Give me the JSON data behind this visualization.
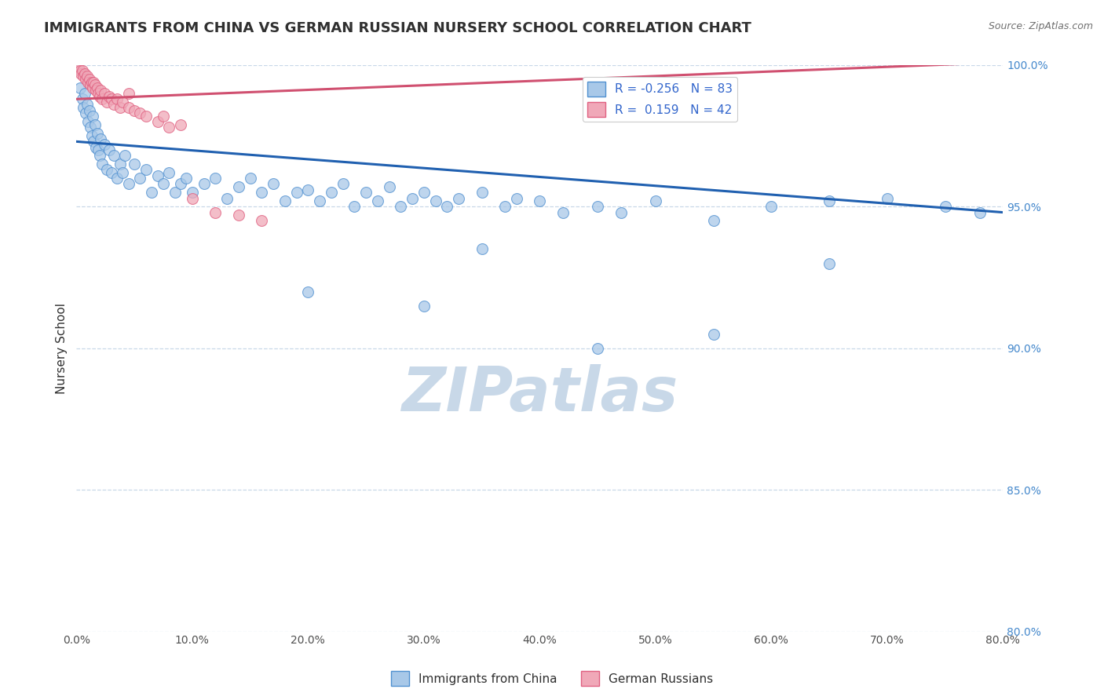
{
  "title": "IMMIGRANTS FROM CHINA VS GERMAN RUSSIAN NURSERY SCHOOL CORRELATION CHART",
  "source": "Source: ZipAtlas.com",
  "ylabel": "Nursery School",
  "xlim": [
    0.0,
    80.0
  ],
  "ylim": [
    80.0,
    100.0
  ],
  "xticks": [
    0.0,
    10.0,
    20.0,
    30.0,
    40.0,
    50.0,
    60.0,
    70.0,
    80.0
  ],
  "yticks": [
    80.0,
    85.0,
    90.0,
    95.0,
    100.0
  ],
  "xticklabels": [
    "0.0%",
    "10.0%",
    "20.0%",
    "30.0%",
    "40.0%",
    "50.0%",
    "60.0%",
    "70.0%",
    "80.0%"
  ],
  "yticklabels": [
    "80.0%",
    "85.0%",
    "90.0%",
    "95.0%",
    "100.0%"
  ],
  "legend_r_blue": "R = -0.256   N = 83",
  "legend_r_pink": "R =  0.159   N = 42",
  "blue_scatter_x": [
    0.3,
    0.5,
    0.6,
    0.7,
    0.8,
    0.9,
    1.0,
    1.1,
    1.2,
    1.3,
    1.4,
    1.5,
    1.6,
    1.7,
    1.8,
    1.9,
    2.0,
    2.1,
    2.2,
    2.4,
    2.6,
    2.8,
    3.0,
    3.2,
    3.5,
    3.8,
    4.0,
    4.2,
    4.5,
    5.0,
    5.5,
    6.0,
    6.5,
    7.0,
    7.5,
    8.0,
    8.5,
    9.0,
    9.5,
    10.0,
    11.0,
    12.0,
    13.0,
    14.0,
    15.0,
    16.0,
    17.0,
    18.0,
    19.0,
    20.0,
    21.0,
    22.0,
    23.0,
    24.0,
    25.0,
    26.0,
    27.0,
    28.0,
    29.0,
    30.0,
    31.0,
    32.0,
    33.0,
    35.0,
    37.0,
    38.0,
    40.0,
    42.0,
    45.0,
    47.0,
    50.0,
    55.0,
    60.0,
    65.0,
    70.0,
    75.0,
    78.0,
    35.0,
    20.0,
    30.0,
    45.0,
    55.0,
    65.0
  ],
  "blue_scatter_y": [
    99.2,
    98.8,
    98.5,
    99.0,
    98.3,
    98.6,
    98.0,
    98.4,
    97.8,
    97.5,
    98.2,
    97.3,
    97.9,
    97.1,
    97.6,
    97.0,
    96.8,
    97.4,
    96.5,
    97.2,
    96.3,
    97.0,
    96.2,
    96.8,
    96.0,
    96.5,
    96.2,
    96.8,
    95.8,
    96.5,
    96.0,
    96.3,
    95.5,
    96.1,
    95.8,
    96.2,
    95.5,
    95.8,
    96.0,
    95.5,
    95.8,
    96.0,
    95.3,
    95.7,
    96.0,
    95.5,
    95.8,
    95.2,
    95.5,
    95.6,
    95.2,
    95.5,
    95.8,
    95.0,
    95.5,
    95.2,
    95.7,
    95.0,
    95.3,
    95.5,
    95.2,
    95.0,
    95.3,
    95.5,
    95.0,
    95.3,
    95.2,
    94.8,
    95.0,
    94.8,
    95.2,
    94.5,
    95.0,
    95.2,
    95.3,
    95.0,
    94.8,
    93.5,
    92.0,
    91.5,
    90.0,
    90.5,
    93.0
  ],
  "pink_scatter_x": [
    0.2,
    0.3,
    0.4,
    0.5,
    0.6,
    0.7,
    0.8,
    0.9,
    1.0,
    1.1,
    1.2,
    1.3,
    1.4,
    1.5,
    1.6,
    1.7,
    1.8,
    1.9,
    2.0,
    2.1,
    2.2,
    2.4,
    2.6,
    2.8,
    3.0,
    3.2,
    3.5,
    3.8,
    4.0,
    4.5,
    5.0,
    5.5,
    6.0,
    7.0,
    8.0,
    9.0,
    10.0,
    12.0,
    14.0,
    16.0,
    4.5,
    7.5
  ],
  "pink_scatter_y": [
    99.9,
    99.8,
    99.7,
    99.8,
    99.6,
    99.7,
    99.5,
    99.6,
    99.4,
    99.5,
    99.3,
    99.4,
    99.2,
    99.4,
    99.3,
    99.1,
    99.2,
    99.0,
    98.9,
    99.1,
    98.8,
    99.0,
    98.7,
    98.9,
    98.8,
    98.6,
    98.8,
    98.5,
    98.7,
    98.5,
    98.4,
    98.3,
    98.2,
    98.0,
    97.8,
    97.9,
    95.3,
    94.8,
    94.7,
    94.5,
    99.0,
    98.2
  ],
  "blue_line_x": [
    0.0,
    80.0
  ],
  "blue_line_y": [
    97.3,
    94.8
  ],
  "pink_line_x": [
    0.0,
    80.0
  ],
  "pink_line_y": [
    98.8,
    100.1
  ],
  "blue_color": "#a8c8e8",
  "pink_color": "#f0a8b8",
  "blue_edge_color": "#5090d0",
  "pink_edge_color": "#e06080",
  "blue_line_color": "#2060b0",
  "pink_line_color": "#d05070",
  "watermark_text": "ZIPatlas",
  "watermark_color": "#c8d8e8",
  "background_color": "#ffffff",
  "grid_color": "#c8d8e8",
  "title_fontsize": 13,
  "ylabel_fontsize": 11,
  "tick_fontsize": 10,
  "legend_fontsize": 11,
  "marker_size": 100,
  "legend_label_blue": "Immigrants from China",
  "legend_label_pink": "German Russians"
}
